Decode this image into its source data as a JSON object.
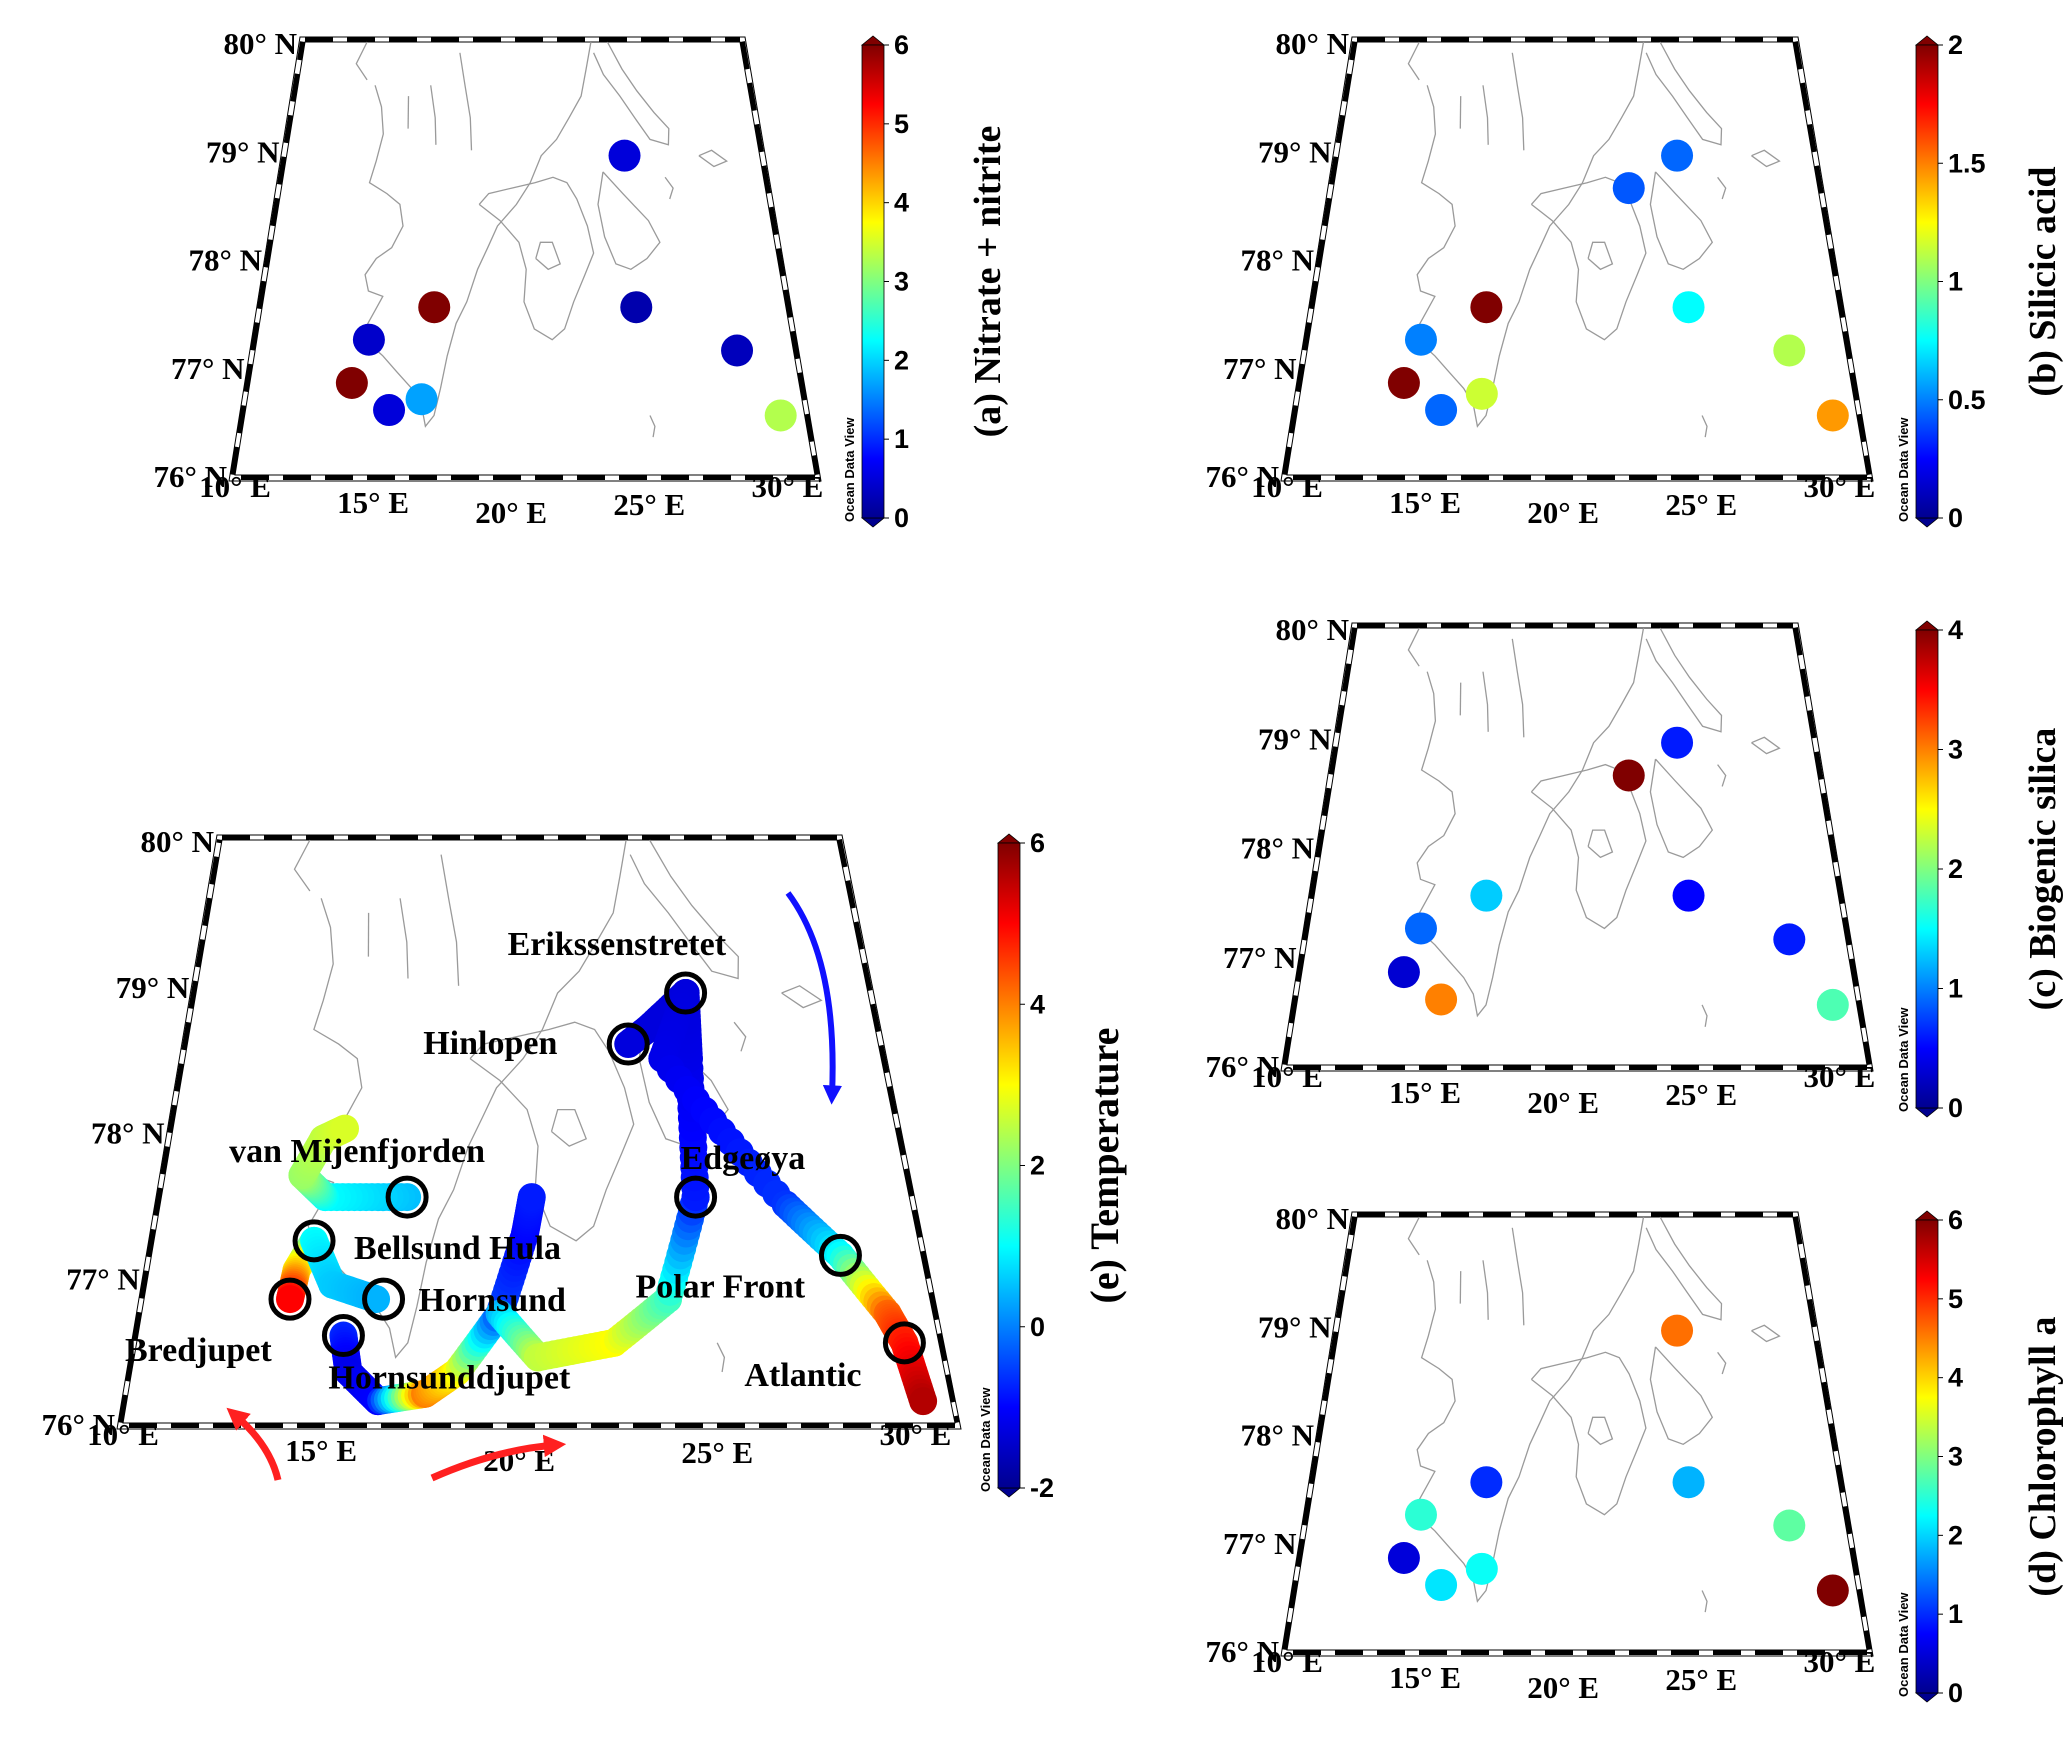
{
  "colors": {
    "jet": [
      "#00008f",
      "#0000ff",
      "#0080ff",
      "#00ffff",
      "#80ff80",
      "#ffff00",
      "#ff8000",
      "#ff0000",
      "#800000"
    ],
    "coast": "#9a9a9a",
    "warm_arrow": "#ff2020",
    "cold_arrow": "#1010ff"
  },
  "icons": [
    "warm-current-arrow",
    "cold-current-arrow",
    "station-circle-marker"
  ],
  "panels": [
    {
      "id": "a",
      "title": "(a) Nitrate + nitrite",
      "odv_label": "Ocean Data View",
      "lat_labels": [
        "80° N",
        "79° N",
        "78° N",
        "77° N",
        "76° N"
      ],
      "lon_labels": [
        "10° E",
        "15° E",
        "20° E",
        "25° E",
        "30° E"
      ],
      "colorbar": {
        "min": 0,
        "max": 6,
        "ticks": [
          "0",
          "1",
          "2",
          "3",
          "4",
          "5",
          "6"
        ]
      },
      "stations": [
        {
          "lon": 25.0,
          "lat": 78.95,
          "value": 0.5
        },
        {
          "lon": 16.9,
          "lat": 77.55,
          "value": 6.0
        },
        {
          "lon": 14.4,
          "lat": 77.25,
          "value": 0.4
        },
        {
          "lon": 25.0,
          "lat": 77.55,
          "value": 0.2
        },
        {
          "lon": 28.8,
          "lat": 77.15,
          "value": 0.3
        },
        {
          "lon": 13.9,
          "lat": 76.85,
          "value": 6.0
        },
        {
          "lon": 16.6,
          "lat": 76.7,
          "value": 1.7
        },
        {
          "lon": 15.4,
          "lat": 76.6,
          "value": 0.5
        },
        {
          "lon": 30.1,
          "lat": 76.55,
          "value": 3.3
        }
      ]
    },
    {
      "id": "b",
      "title": "(b) Silicic acid",
      "odv_label": "Ocean Data View",
      "lat_labels": [
        "80° N",
        "79° N",
        "78° N",
        "77° N",
        "76° N"
      ],
      "lon_labels": [
        "10° E",
        "15° E",
        "20° E",
        "25° E",
        "30° E"
      ],
      "colorbar": {
        "min": 0,
        "max": 2,
        "ticks": [
          "0",
          "0.5",
          "1",
          "1.5",
          "2"
        ]
      },
      "stations": [
        {
          "lon": 25.0,
          "lat": 78.95,
          "value": 0.45
        },
        {
          "lon": 22.8,
          "lat": 78.65,
          "value": 0.42
        },
        {
          "lon": 16.9,
          "lat": 77.55,
          "value": 2.0
        },
        {
          "lon": 25.0,
          "lat": 77.55,
          "value": 0.75
        },
        {
          "lon": 14.4,
          "lat": 77.25,
          "value": 0.5
        },
        {
          "lon": 28.8,
          "lat": 77.15,
          "value": 1.1
        },
        {
          "lon": 13.9,
          "lat": 76.85,
          "value": 2.0
        },
        {
          "lon": 16.9,
          "lat": 76.75,
          "value": 1.15
        },
        {
          "lon": 15.4,
          "lat": 76.6,
          "value": 0.45
        },
        {
          "lon": 30.1,
          "lat": 76.55,
          "value": 1.45
        }
      ]
    },
    {
      "id": "c",
      "title": "(c) Biogenic silica",
      "odv_label": "Ocean Data View",
      "lat_labels": [
        "80° N",
        "79° N",
        "78° N",
        "77° N",
        "76° N"
      ],
      "lon_labels": [
        "10° E",
        "15° E",
        "20° E",
        "25° E",
        "30° E"
      ],
      "colorbar": {
        "min": 0,
        "max": 4,
        "ticks": [
          "0",
          "1",
          "2",
          "3",
          "4"
        ]
      },
      "stations": [
        {
          "lon": 25.0,
          "lat": 78.95,
          "value": 0.6
        },
        {
          "lon": 22.8,
          "lat": 78.65,
          "value": 4.0
        },
        {
          "lon": 16.9,
          "lat": 77.55,
          "value": 1.3
        },
        {
          "lon": 25.0,
          "lat": 77.55,
          "value": 0.5
        },
        {
          "lon": 14.4,
          "lat": 77.25,
          "value": 0.9
        },
        {
          "lon": 28.8,
          "lat": 77.15,
          "value": 0.6
        },
        {
          "lon": 13.9,
          "lat": 76.85,
          "value": 0.3
        },
        {
          "lon": 15.4,
          "lat": 76.6,
          "value": 3.0
        },
        {
          "lon": 30.1,
          "lat": 76.55,
          "value": 1.8
        }
      ]
    },
    {
      "id": "d",
      "title": "(d) Chlorophyll a",
      "odv_label": "Ocean Data View",
      "lat_labels": [
        "80° N",
        "79° N",
        "78° N",
        "77° N",
        "76° N"
      ],
      "lon_labels": [
        "10° E",
        "15° E",
        "20° E",
        "25° E",
        "30° E"
      ],
      "colorbar": {
        "min": 0,
        "max": 6,
        "ticks": [
          "0",
          "1",
          "2",
          "3",
          "4",
          "5",
          "6"
        ]
      },
      "stations": [
        {
          "lon": 25.0,
          "lat": 78.95,
          "value": 4.6
        },
        {
          "lon": 16.9,
          "lat": 77.55,
          "value": 1.0
        },
        {
          "lon": 25.0,
          "lat": 77.55,
          "value": 1.8
        },
        {
          "lon": 14.4,
          "lat": 77.25,
          "value": 2.5
        },
        {
          "lon": 28.8,
          "lat": 77.15,
          "value": 2.8
        },
        {
          "lon": 13.9,
          "lat": 76.85,
          "value": 0.5
        },
        {
          "lon": 16.9,
          "lat": 76.75,
          "value": 2.3
        },
        {
          "lon": 15.4,
          "lat": 76.6,
          "value": 2.1
        },
        {
          "lon": 30.1,
          "lat": 76.55,
          "value": 6.0
        }
      ]
    },
    {
      "id": "e",
      "title": "(e) Temperature",
      "odv_label": "Ocean Data View",
      "lat_labels": [
        "80° N",
        "79° N",
        "78° N",
        "77° N",
        "76° N"
      ],
      "lon_labels": [
        "10° E",
        "15° E",
        "20° E",
        "25° E",
        "30° E"
      ],
      "colorbar": {
        "min": -2,
        "max": 6,
        "ticks": [
          "-2",
          "0",
          "2",
          "4",
          "6"
        ]
      },
      "track_segments": [
        [
          {
            "lon": 16.9,
            "lat": 77.55,
            "t": 0.5
          },
          {
            "lon": 14.6,
            "lat": 77.55,
            "t": 1.0
          },
          {
            "lon": 13.9,
            "lat": 77.7,
            "t": 2.2
          },
          {
            "lon": 14.4,
            "lat": 77.95,
            "t": 2.5
          },
          {
            "lon": 15.0,
            "lat": 78.02,
            "t": 2.7
          }
        ],
        [
          {
            "lon": 14.4,
            "lat": 77.25,
            "t": 1.5
          },
          {
            "lon": 14.0,
            "lat": 77.05,
            "t": 3.2
          },
          {
            "lon": 13.9,
            "lat": 76.85,
            "t": 5.0
          }
        ],
        [
          {
            "lon": 14.4,
            "lat": 77.25,
            "t": 1.0
          },
          {
            "lon": 15.0,
            "lat": 76.95,
            "t": 0.6
          },
          {
            "lon": 16.2,
            "lat": 76.85,
            "t": 0.4
          }
        ],
        [
          {
            "lon": 15.4,
            "lat": 76.6,
            "t": -0.7
          },
          {
            "lon": 15.6,
            "lat": 76.35,
            "t": -1.2
          },
          {
            "lon": 16.4,
            "lat": 76.15,
            "t": -1.0
          },
          {
            "lon": 17.6,
            "lat": 76.2,
            "t": 4.0
          },
          {
            "lon": 18.4,
            "lat": 76.35,
            "t": 3.0
          },
          {
            "lon": 19.5,
            "lat": 76.75,
            "t": -0.4
          },
          {
            "lon": 20.2,
            "lat": 77.3,
            "t": -1.0
          },
          {
            "lon": 20.4,
            "lat": 77.55,
            "t": -0.8
          }
        ],
        [
          {
            "lon": 19.5,
            "lat": 76.75,
            "t": 0.4
          },
          {
            "lon": 20.5,
            "lat": 76.45,
            "t": 2.5
          },
          {
            "lon": 22.5,
            "lat": 76.55,
            "t": 3.0
          },
          {
            "lon": 24.0,
            "lat": 76.85,
            "t": 1.5
          },
          {
            "lon": 25.0,
            "lat": 77.55,
            "t": -0.8
          },
          {
            "lon": 25.2,
            "lat": 78.5,
            "t": -1.2
          },
          {
            "lon": 25.3,
            "lat": 78.95,
            "t": -1.3
          },
          {
            "lon": 24.0,
            "lat": 78.7,
            "t": -1.3
          },
          {
            "lon": 23.4,
            "lat": 78.6,
            "t": -1.3
          }
        ],
        [
          {
            "lon": 25.3,
            "lat": 78.95,
            "t": -1.3
          },
          {
            "lon": 24.4,
            "lat": 78.5,
            "t": -1.2
          },
          {
            "lon": 27.5,
            "lat": 77.5,
            "t": -0.6
          },
          {
            "lon": 28.8,
            "lat": 77.15,
            "t": 1.0
          },
          {
            "lon": 29.8,
            "lat": 76.75,
            "t": 4.2
          },
          {
            "lon": 30.1,
            "lat": 76.55,
            "t": 4.8
          },
          {
            "lon": 30.3,
            "lat": 76.15,
            "t": 5.6
          }
        ]
      ],
      "stations": [
        {
          "name": "Erikssenstretet",
          "lon": 25.3,
          "lat": 78.95
        },
        {
          "name": "Hinlopen",
          "lon": 23.4,
          "lat": 78.6
        },
        {
          "name": "Edgeøya",
          "lon": 25.0,
          "lat": 77.55
        },
        {
          "name": "van Mijenfjorden",
          "lon": 16.9,
          "lat": 77.55
        },
        {
          "name": "Bellsund Hula",
          "lon": 14.4,
          "lat": 77.25
        },
        {
          "name": "Polar Front",
          "lon": 28.8,
          "lat": 77.15
        },
        {
          "name": "Hornsund",
          "lon": 16.4,
          "lat": 76.85
        },
        {
          "name": "Bredjupet",
          "lon": 13.9,
          "lat": 76.85
        },
        {
          "name": "Hornsunddjupet",
          "lon": 15.4,
          "lat": 76.6
        },
        {
          "name": "Atlantic",
          "lon": 30.1,
          "lat": 76.55
        }
      ]
    }
  ]
}
